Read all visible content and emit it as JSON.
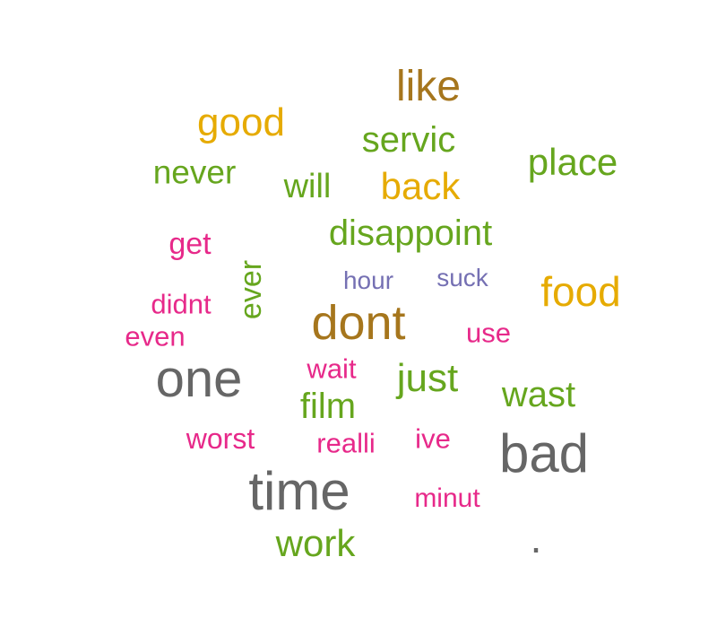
{
  "colors": {
    "brown": "#a6761d",
    "gold": "#e6ab02",
    "green": "#66a61e",
    "magenta": "#e7298a",
    "purple": "#7570b3",
    "gray": "#666666"
  },
  "words": {
    "like": "like",
    "good": "good",
    "servic": "servic",
    "place": "place",
    "never": "never",
    "will": "will",
    "back": "back",
    "disappoint": "disappoint",
    "get": "get",
    "ever": "ever",
    "hour": "hour",
    "suck": "suck",
    "food": "food",
    "didnt": "didnt",
    "dont": "dont",
    "use": "use",
    "even": "even",
    "one": "one",
    "wait": "wait",
    "just": "just",
    "wast": "wast",
    "film": "film",
    "worst": "worst",
    "realli": "realli",
    "ive": "ive",
    "bad": "bad",
    "time": "time",
    "minut": "minut",
    "work": "work",
    "dot": "."
  }
}
